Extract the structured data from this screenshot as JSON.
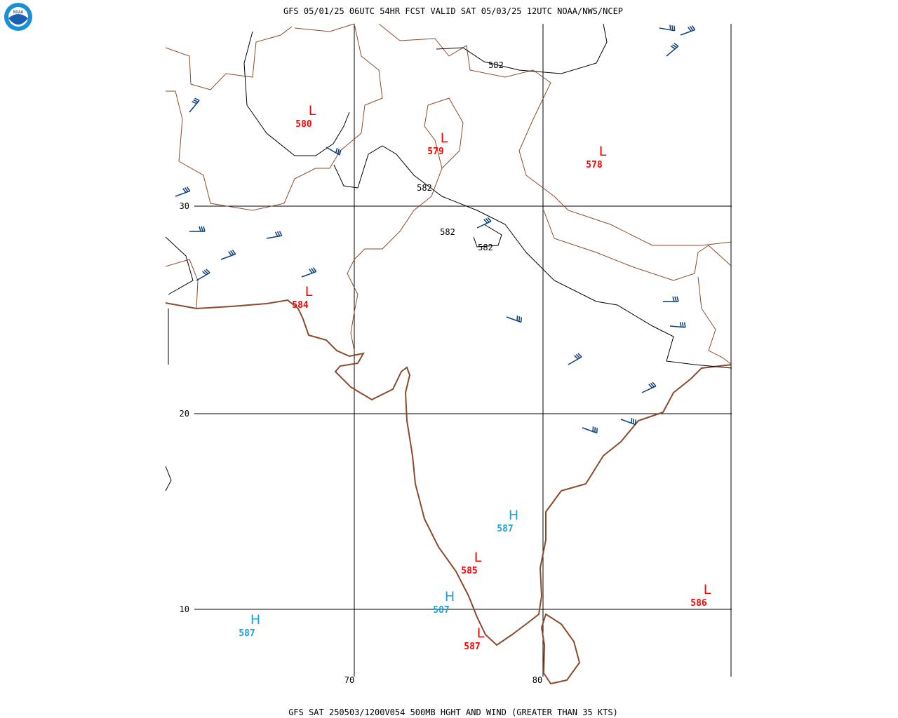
{
  "header": {
    "title": "GFS 05/01/25 06UTC 54HR FCST VALID SAT 05/03/25 12UTC NOAA/NWS/NCEP"
  },
  "logo": {
    "text": "NOAA"
  },
  "footer": {
    "caption": "GFS SAT 250503/1200V054 500MB HGHT AND WIND (GREATER THAN 35 KTS)"
  },
  "grid": {
    "lat_labels": [
      30,
      20,
      10
    ],
    "lon_labels": [
      70,
      80
    ]
  },
  "centers": [
    {
      "kind": "L",
      "value": 580
    },
    {
      "kind": "L",
      "value": 579
    },
    {
      "kind": "L",
      "value": 578
    },
    {
      "kind": "L",
      "value": 584
    },
    {
      "kind": "H",
      "value": 587
    },
    {
      "kind": "L",
      "value": 585
    },
    {
      "kind": "H",
      "value": 587
    },
    {
      "kind": "L",
      "value": 587
    },
    {
      "kind": "H",
      "value": 587
    },
    {
      "kind": "L",
      "value": 586
    }
  ],
  "contour_labels": [
    582,
    582,
    582,
    582
  ]
}
